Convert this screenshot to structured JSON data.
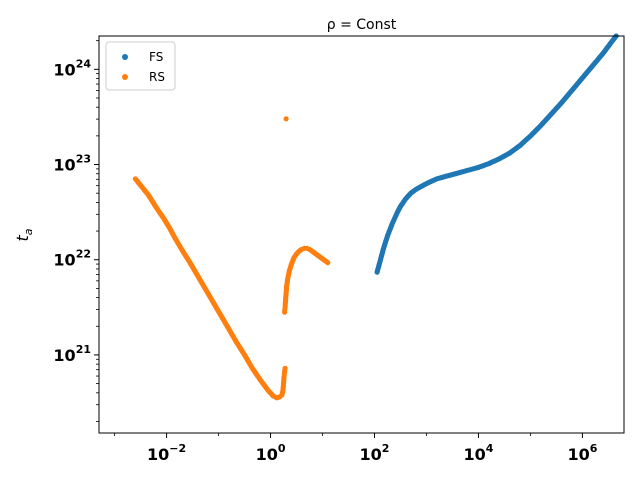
{
  "chart_data": {
    "type": "scatter",
    "title": "ρ = Const",
    "xlabel": "",
    "ylabel": "t_a",
    "xscale": "log",
    "yscale": "log",
    "xlim_exp": [
      -3.3,
      6.8
    ],
    "ylim_exp": [
      20.18,
      24.35
    ],
    "x_ticks": [
      {
        "exp": -2,
        "label": "10",
        "sup": "−2"
      },
      {
        "exp": 0,
        "label": "10",
        "sup": "0"
      },
      {
        "exp": 2,
        "label": "10",
        "sup": "2"
      },
      {
        "exp": 4,
        "label": "10",
        "sup": "4"
      },
      {
        "exp": 6,
        "label": "10",
        "sup": "6"
      }
    ],
    "y_ticks": [
      {
        "exp": 21,
        "label": "10",
        "sup": "21"
      },
      {
        "exp": 22,
        "label": "10",
        "sup": "22"
      },
      {
        "exp": 23,
        "label": "10",
        "sup": "23"
      },
      {
        "exp": 24,
        "label": "10",
        "sup": "24"
      }
    ],
    "legend": {
      "position": "upper-left",
      "entries": [
        "FS",
        "RS"
      ]
    },
    "colors": {
      "FS": "#1f77b4",
      "RS": "#ff7f0e"
    },
    "series": [
      {
        "name": "FS",
        "description": "log10(x) vs log10(t_a)",
        "log_points": [
          [
            2.05,
            21.87
          ],
          [
            2.18,
            22.13
          ],
          [
            2.25,
            22.25
          ],
          [
            2.3,
            22.32
          ],
          [
            2.35,
            22.39
          ],
          [
            2.4,
            22.45
          ],
          [
            2.45,
            22.51
          ],
          [
            2.5,
            22.56
          ],
          [
            2.6,
            22.64
          ],
          [
            2.7,
            22.7
          ],
          [
            2.8,
            22.74
          ],
          [
            2.9,
            22.77
          ],
          [
            3.0,
            22.8
          ],
          [
            3.2,
            22.85
          ],
          [
            3.4,
            22.88
          ],
          [
            3.6,
            22.91
          ],
          [
            3.8,
            22.94
          ],
          [
            4.0,
            22.97
          ],
          [
            4.2,
            23.01
          ],
          [
            4.4,
            23.06
          ],
          [
            4.6,
            23.12
          ],
          [
            4.8,
            23.2
          ],
          [
            5.0,
            23.3
          ],
          [
            5.2,
            23.41
          ],
          [
            5.4,
            23.53
          ],
          [
            5.6,
            23.65
          ],
          [
            5.8,
            23.78
          ],
          [
            6.0,
            23.91
          ],
          [
            6.2,
            24.04
          ],
          [
            6.4,
            24.17
          ],
          [
            6.55,
            24.28
          ],
          [
            6.65,
            24.35
          ]
        ]
      },
      {
        "name": "RS",
        "description": "log10(x) vs log10(t_a)",
        "log_points": [
          [
            -2.6,
            22.85
          ],
          [
            -2.35,
            22.68
          ],
          [
            -2.2,
            22.55
          ],
          [
            -2.05,
            22.43
          ],
          [
            -1.95,
            22.34
          ],
          [
            -1.85,
            22.24
          ],
          [
            -1.7,
            22.1
          ],
          [
            -1.55,
            21.97
          ],
          [
            -1.4,
            21.83
          ],
          [
            -1.25,
            21.69
          ],
          [
            -1.1,
            21.55
          ],
          [
            -0.95,
            21.41
          ],
          [
            -0.8,
            21.27
          ],
          [
            -0.65,
            21.13
          ],
          [
            -0.5,
            21.0
          ],
          [
            -0.35,
            20.86
          ],
          [
            -0.2,
            20.74
          ],
          [
            -0.05,
            20.63
          ],
          [
            0.05,
            20.57
          ],
          [
            0.12,
            20.55
          ],
          [
            0.18,
            20.56
          ],
          [
            0.22,
            20.58
          ],
          [
            0.24,
            20.63
          ],
          [
            0.25,
            20.7
          ],
          [
            0.26,
            20.77
          ],
          [
            0.27,
            20.82
          ],
          [
            0.28,
            20.86
          ],
          [
            0.27,
            21.45
          ],
          [
            0.28,
            21.5
          ],
          [
            0.29,
            21.58
          ],
          [
            0.3,
            21.65
          ],
          [
            0.31,
            21.72
          ],
          [
            0.33,
            21.8
          ],
          [
            0.36,
            21.88
          ],
          [
            0.4,
            21.95
          ],
          [
            0.45,
            22.02
          ],
          [
            0.5,
            22.06
          ],
          [
            0.55,
            22.09
          ],
          [
            0.6,
            22.11
          ],
          [
            0.65,
            22.12
          ],
          [
            0.7,
            22.12
          ],
          [
            0.75,
            22.11
          ],
          [
            0.8,
            22.09
          ],
          [
            0.85,
            22.07
          ],
          [
            0.9,
            22.05
          ],
          [
            0.95,
            22.03
          ],
          [
            1.0,
            22.01
          ],
          [
            1.05,
            21.99
          ],
          [
            1.1,
            21.97
          ],
          [
            0.3,
            23.48
          ]
        ]
      }
    ]
  }
}
